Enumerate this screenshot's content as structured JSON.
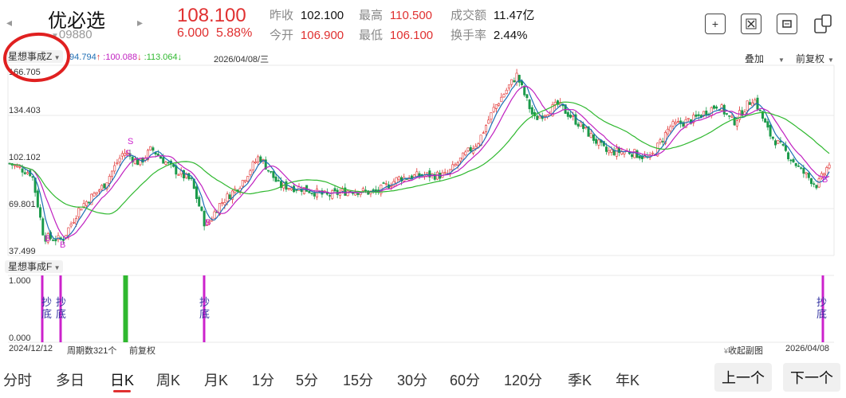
{
  "header": {
    "back_arrow": "◂",
    "forward_arrow": "▸",
    "stock_name": "优必选",
    "stock_code": "09880",
    "price": "108.100",
    "change": "6.000",
    "change_pct": "5.88%",
    "stats": [
      {
        "label": "昨收",
        "value": "102.100",
        "color": "black"
      },
      {
        "label": "最高",
        "value": "110.500",
        "color": "red"
      },
      {
        "label": "成交额",
        "value": "11.47亿",
        "color": "black"
      },
      {
        "label": "今开",
        "value": "106.900",
        "color": "red"
      },
      {
        "label": "最低",
        "value": "106.100",
        "color": "red"
      },
      {
        "label": "换手率",
        "value": "2.44%",
        "color": "black"
      }
    ],
    "toolbar_icons": [
      "plus-square-icon",
      "region-icon",
      "screen-icon",
      "share-icon"
    ]
  },
  "indicator_bar": {
    "name": "星想事成Z",
    "ma1": ":94.794",
    "ma2": ":100.088",
    "ma3": ":113.064",
    "date": "2026/04/08/三",
    "overlay": "叠加",
    "adjust": "前复权"
  },
  "main_chart": {
    "y_ticks": [
      "166.705",
      "134.403",
      "102.102",
      "69.801",
      "37.499"
    ],
    "signal_labels": [
      "S",
      "S",
      "B",
      "B",
      "B",
      "B"
    ]
  },
  "sub_chart": {
    "name": "星想事成F",
    "y_ticks": [
      "1.000",
      "0.000"
    ],
    "signal_text": "抄底"
  },
  "footer_info": {
    "start_date": "2024/12/12",
    "period_count": "周期数321个",
    "adjust": "前复权",
    "collapse": "收起副图",
    "end_date": "2026/04/08"
  },
  "tabs": [
    "分时",
    "多日",
    "日K",
    "周K",
    "月K",
    "1分",
    "5分",
    "15分",
    "30分",
    "60分",
    "120分",
    "季K",
    "年K"
  ],
  "active_tab": "日K",
  "nav": {
    "prev": "上一个",
    "next": "下一个"
  },
  "colors": {
    "up": "#e03030",
    "down": "#1a9a4a",
    "ma1": "#1f6fb5",
    "ma2": "#c020c0",
    "ma3": "#2fb82f",
    "signal": "#cc22cc",
    "annotation_circle": "#e02020"
  }
}
